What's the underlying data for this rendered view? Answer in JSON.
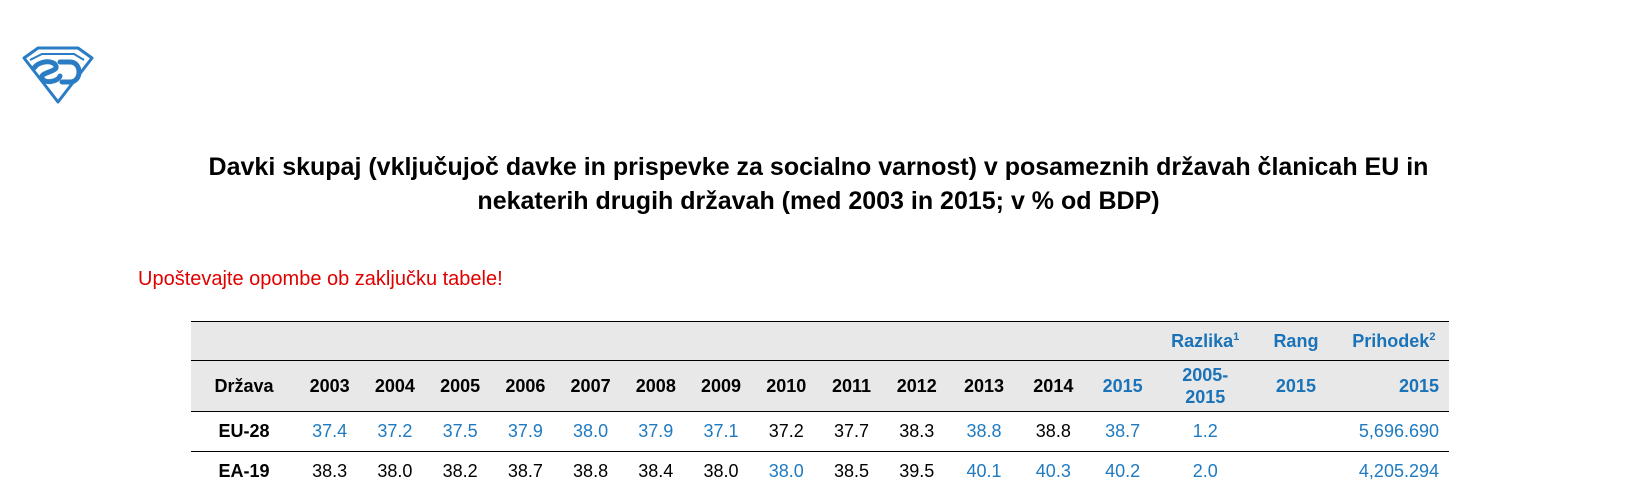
{
  "title_line1": "Davki skupaj (vključujoč davke in prispevke za socialno varnost) v posameznih državah članicah EU in",
  "title_line2": "nekaterih drugih državah (med 2003 in 2015; v % od BDP)",
  "note": "Upoštevajte opombe ob zaključku tabele!",
  "header_top": {
    "razlika": "Razlika",
    "razlika_sup": "1",
    "rang": "Rang",
    "prihodek": "Prihodek",
    "prihodek_sup": "2"
  },
  "header": {
    "drzava": "Država",
    "years": [
      "2003",
      "2004",
      "2005",
      "2006",
      "2007",
      "2008",
      "2009",
      "2010",
      "2011",
      "2012",
      "2013",
      "2014",
      "2015"
    ],
    "razlika_line1": "2005-",
    "razlika_line2": "2015",
    "rang": "2015",
    "prihodek": "2015"
  },
  "rows": [
    {
      "country": "EU-28",
      "values": [
        "37.4",
        "37.2",
        "37.5",
        "37.9",
        "38.0",
        "37.9",
        "37.1",
        "37.2",
        "37.7",
        "38.3",
        "38.8",
        "38.8",
        "38.7"
      ],
      "blue": [
        true,
        true,
        true,
        true,
        true,
        true,
        true,
        false,
        false,
        false,
        true,
        false,
        true
      ],
      "razlika": "1.2",
      "rang": "",
      "prihodek": "5,696.690"
    },
    {
      "country": "EA-19",
      "values": [
        "38.3",
        "38.0",
        "38.2",
        "38.7",
        "38.8",
        "38.4",
        "38.0",
        "38.0",
        "38.5",
        "39.5",
        "40.1",
        "40.3",
        "40.2"
      ],
      "blue": [
        false,
        false,
        false,
        false,
        false,
        false,
        false,
        true,
        false,
        false,
        true,
        true,
        true
      ],
      "razlika": "2.0",
      "rang": "",
      "prihodek": "4,205.294"
    }
  ],
  "colors": {
    "accent_blue": "#1f7ac0",
    "note_red": "#e00000",
    "header_gray": "#e8e8e8"
  }
}
